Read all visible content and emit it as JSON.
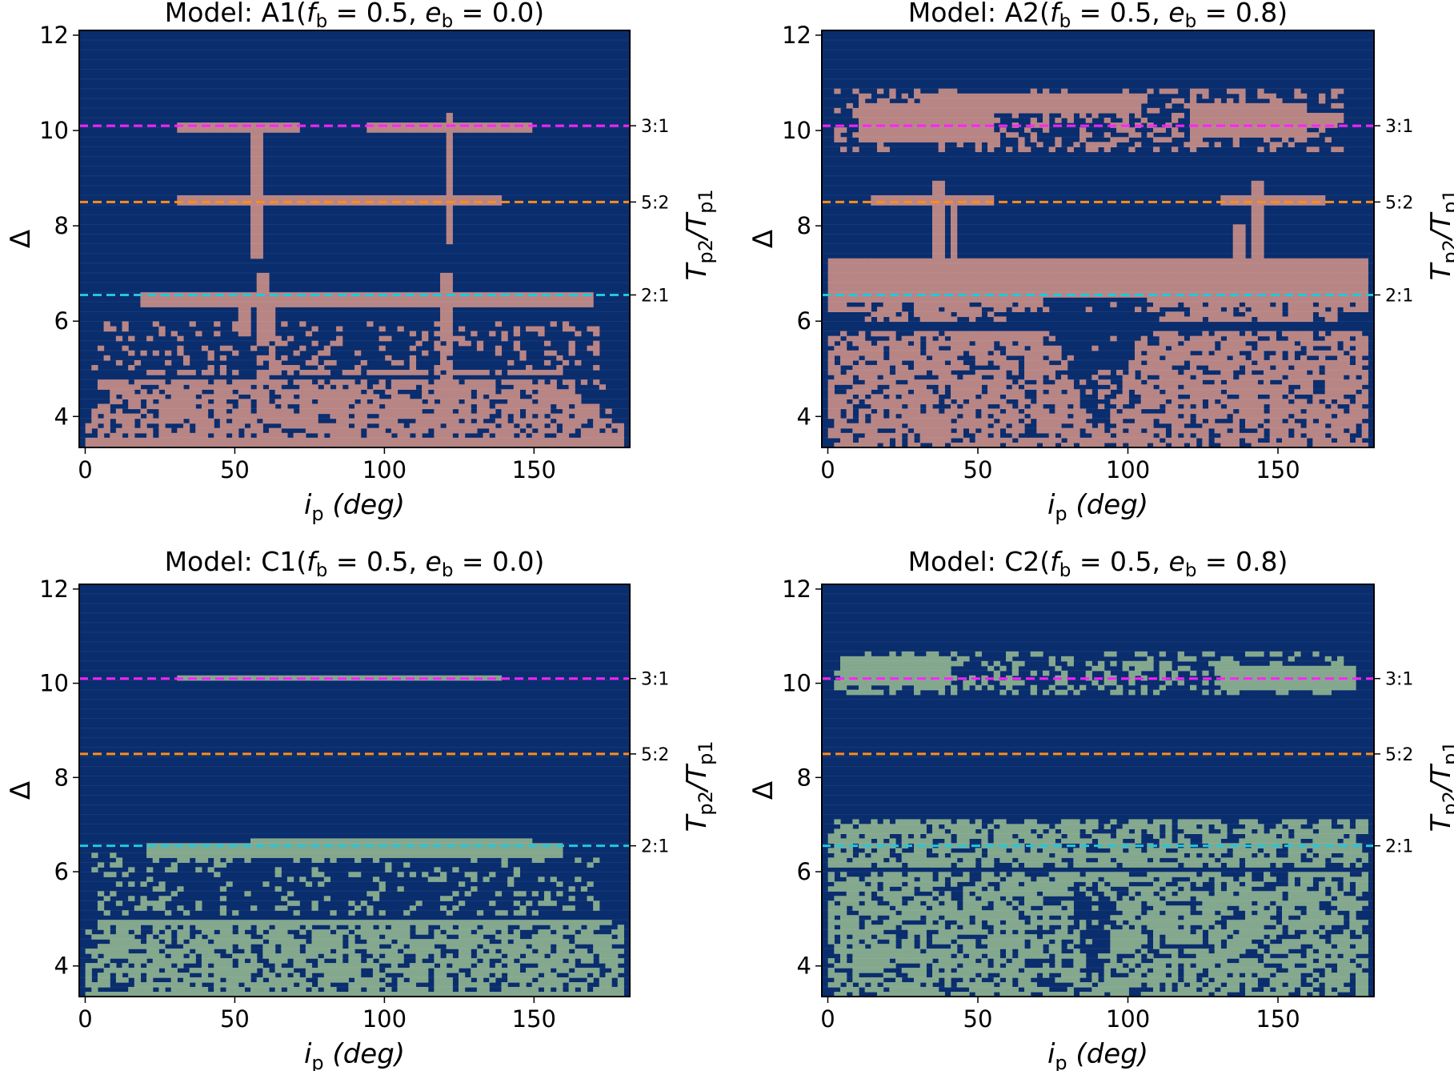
{
  "figure": {
    "panels": [
      {
        "id": "A1",
        "title": {
          "prefix": "Model: A1(",
          "f_sym": "f",
          "f_sub": "b",
          "f_eq": " = 0.5, ",
          "e_sym": "e",
          "e_sub": "b",
          "e_eq": " = 0.0)"
        },
        "fill_color": "#b88585",
        "background_color": "#0a2d6e"
      },
      {
        "id": "A2",
        "title": {
          "prefix": "Model: A2(",
          "f_sym": "f",
          "f_sub": "b",
          "f_eq": " = 0.5, ",
          "e_sym": "e",
          "e_sub": "b",
          "e_eq": " = 0.8)"
        },
        "fill_color": "#b88585",
        "background_color": "#0a2d6e"
      },
      {
        "id": "C1",
        "title": {
          "prefix": "Model: C1(",
          "f_sym": "f",
          "f_sub": "b",
          "f_eq": " = 0.5, ",
          "e_sym": "e",
          "e_sub": "b",
          "e_eq": " = 0.0)"
        },
        "fill_color": "#84a88e",
        "background_color": "#0a2d6e"
      },
      {
        "id": "C2",
        "title": {
          "prefix": "Model: C2(",
          "f_sym": "f",
          "f_sub": "b",
          "f_eq": " = 0.5, ",
          "e_sym": "e",
          "e_sub": "b",
          "e_eq": " = 0.8)"
        },
        "fill_color": "#84a88e",
        "background_color": "#0a2d6e"
      }
    ],
    "xlabel": {
      "sym": "i",
      "sub": "p",
      "rest": " (deg)"
    },
    "ylabel": "Δ",
    "right_label": {
      "sym1": "T",
      "sub1": "p2",
      "slash": "/",
      "sym2": "T",
      "sub2": "p1"
    }
  },
  "chart_data": {
    "type": "heatmap",
    "x_ticks": [
      "0",
      "50",
      "100",
      "150"
    ],
    "y_ticks": [
      "4",
      "6",
      "8",
      "10",
      "12"
    ],
    "xlim": [
      -2,
      182
    ],
    "ylim": [
      3.35,
      12.1
    ],
    "grid": {
      "nx": 90,
      "ny": 86
    },
    "resonances": [
      {
        "label": "3:1",
        "delta": 10.1,
        "color": "#ff22ff"
      },
      {
        "label": "5:2",
        "delta": 8.5,
        "color": "#ff8c1a"
      },
      {
        "label": "2:1",
        "delta": 6.55,
        "color": "#22c8dc"
      }
    ],
    "panels": {
      "A1": {
        "rects": [
          [
            0,
            180,
            3.35,
            3.85
          ],
          [
            2,
            175,
            3.85,
            4.3
          ],
          [
            8,
            165,
            4.3,
            4.55
          ],
          [
            4,
            174,
            4.62,
            4.8
          ],
          [
            20,
            160,
            4.85,
            5.0
          ],
          [
            58,
            63,
            4.8,
            6.3
          ],
          [
            118,
            123,
            4.8,
            6.3
          ],
          [
            18,
            170,
            6.25,
            6.65
          ],
          [
            52,
            56,
            5.6,
            6.3
          ],
          [
            58,
            62,
            6.6,
            7.0
          ],
          [
            119,
            123,
            6.6,
            7.0
          ],
          [
            56,
            60,
            7.3,
            10.2
          ],
          [
            120,
            123,
            7.6,
            10.4
          ],
          [
            30,
            72,
            10.0,
            10.2
          ],
          [
            95,
            150,
            10.0,
            10.2
          ],
          [
            30,
            140,
            8.45,
            8.6
          ]
        ],
        "holes_density": 0.28,
        "hole_band": [
          3.6,
          5.7
        ],
        "speckle_density": 0.22,
        "speckle_band": [
          5.0,
          6.0
        ],
        "seed": 11
      },
      "A2": {
        "rects": [
          [
            0,
            180,
            3.35,
            5.8
          ],
          [
            0,
            180,
            6.15,
            7.3
          ],
          [
            10,
            60,
            6.0,
            6.3
          ],
          [
            110,
            170,
            6.0,
            6.3
          ],
          [
            34,
            38,
            7.2,
            8.9
          ],
          [
            40,
            43,
            7.2,
            8.6
          ],
          [
            136,
            140,
            7.2,
            8.0
          ],
          [
            142,
            145,
            7.2,
            8.9
          ],
          [
            15,
            55,
            8.4,
            8.6
          ],
          [
            130,
            165,
            8.4,
            8.6
          ],
          [
            10,
            55,
            9.8,
            10.6
          ],
          [
            30,
            105,
            10.4,
            10.8
          ],
          [
            120,
            160,
            9.9,
            10.6
          ],
          [
            145,
            170,
            10.1,
            10.4
          ]
        ],
        "holes_density": 0.25,
        "hole_band": [
          3.4,
          6.4
        ],
        "v_notch": {
          "x0": 75,
          "x1": 105,
          "y_bottom": 3.9,
          "y_top": 6.5
        },
        "speckle_density": 0.3,
        "speckle_band": [
          9.6,
          10.9
        ],
        "seed": 23
      },
      "C1": {
        "rects": [
          [
            0,
            180,
            3.35,
            4.9
          ],
          [
            4,
            175,
            4.9,
            5.0
          ],
          [
            20,
            160,
            6.35,
            6.65
          ],
          [
            55,
            150,
            6.45,
            6.7
          ],
          [
            30,
            140,
            10.05,
            10.2
          ]
        ],
        "holes_density": 0.32,
        "hole_band": [
          3.5,
          4.9
        ],
        "speckle_density": 0.18,
        "speckle_band": [
          5.1,
          6.4
        ],
        "seed": 37
      },
      "C2": {
        "rects": [
          [
            0,
            180,
            3.35,
            5.6
          ],
          [
            0,
            180,
            5.6,
            6.0
          ],
          [
            0,
            180,
            6.1,
            7.1
          ],
          [
            5,
            40,
            10.0,
            10.6
          ],
          [
            130,
            175,
            9.9,
            10.4
          ]
        ],
        "holes_density": 0.32,
        "hole_band": [
          3.4,
          7.1
        ],
        "v_notch": {
          "x0": 82,
          "x1": 96,
          "y_bottom": 3.6,
          "y_top": 5.5
        },
        "speckle_density": 0.35,
        "speckle_band": [
          9.8,
          10.7
        ],
        "seed": 41
      }
    }
  }
}
